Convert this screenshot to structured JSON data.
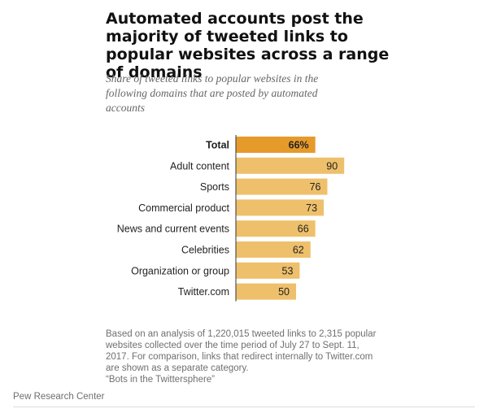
{
  "chart_data": {
    "type": "bar",
    "orientation": "horizontal",
    "title": "Automated accounts post the majority of tweeted links to popular websites across a range of domains",
    "subtitle": "Share of tweeted links to popular websites in the following domains that are posted by automated accounts",
    "categories": [
      "Total",
      "Adult content",
      "Sports",
      "Commercial product",
      "News and current events",
      "Celebrities",
      "Organization or group",
      "Twitter.com"
    ],
    "values": [
      66,
      90,
      76,
      73,
      66,
      62,
      53,
      50
    ],
    "value_labels": [
      "66%",
      "90",
      "76",
      "73",
      "66",
      "62",
      "53",
      "50"
    ],
    "highlight_index": 0,
    "xlim": [
      0,
      100
    ],
    "grid": false,
    "colors": {
      "bar": "#EEC06B",
      "highlight": "#E69A2A",
      "baseline": "#333333"
    }
  },
  "note": {
    "lines": [
      "Based on an analysis of 1,220,015 tweeted links to 2,315 popular",
      "websites collected over the time period of July 27 to Sept. 11,",
      "2017. For comparison, links that redirect internally to Twitter.com",
      "are shown as a separate category.",
      "“Bots in the Twittersphere”"
    ]
  },
  "source": "Pew Research Center"
}
